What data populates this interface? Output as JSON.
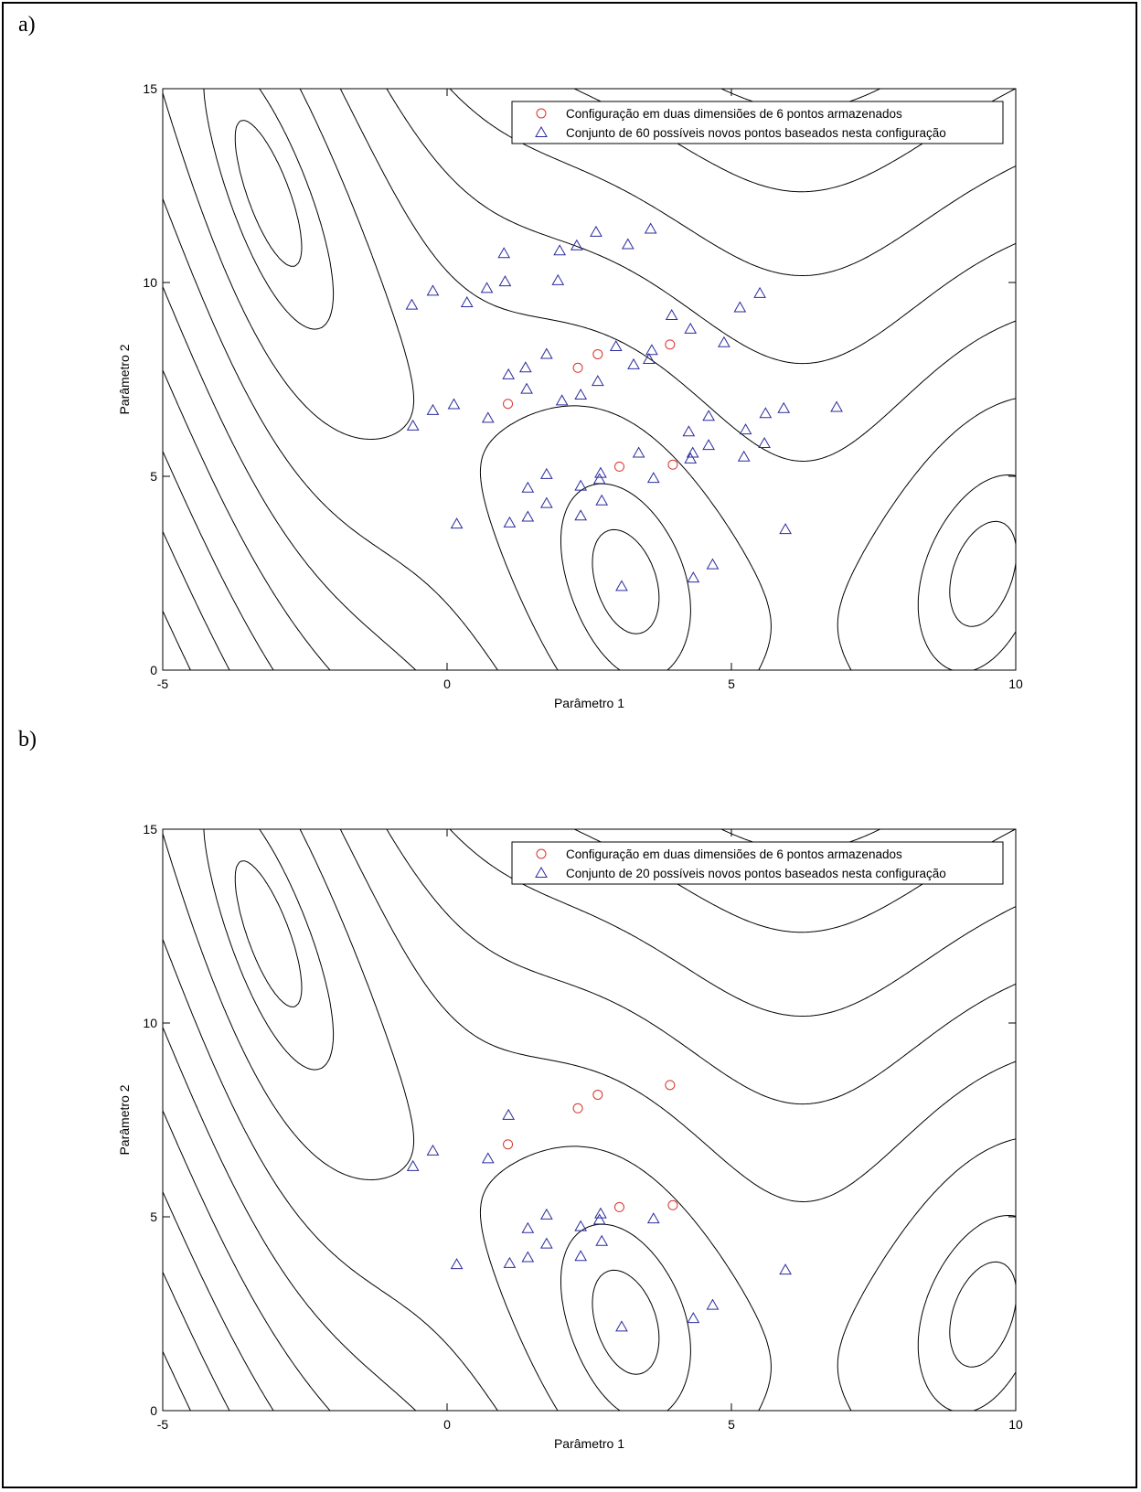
{
  "panels": [
    {
      "label": "a)"
    },
    {
      "label": "b)"
    }
  ],
  "colors": {
    "circle": "#d9342b",
    "triangle": "#2b2b9e",
    "contour": "#000000"
  },
  "chart_data": [
    {
      "type": "scatter",
      "title": "",
      "xlabel": "Parâmetro 1",
      "ylabel": "Parâmetro 2",
      "xlim": [
        -5,
        10
      ],
      "ylim": [
        0,
        15
      ],
      "xticks": [
        "-5",
        "0",
        "5",
        "10"
      ],
      "yticks": [
        "0",
        "5",
        "10",
        "15"
      ],
      "background": "contour lines",
      "legend_position": "top-right",
      "series": [
        {
          "name": "Configuração em duas dimensiões de 6 pontos armazenados",
          "marker": "circle",
          "points": [
            [
              1.07,
              6.87
            ],
            [
              2.3,
              7.8
            ],
            [
              2.65,
              8.15
            ],
            [
              3.92,
              8.4
            ],
            [
              3.03,
              5.25
            ],
            [
              3.97,
              5.3
            ]
          ]
        },
        {
          "name": "Conjunto de 60 possíveis novos pontos baseados nesta configuração",
          "marker": "triangle",
          "points": [
            [
              -0.6,
              6.3
            ],
            [
              -0.25,
              6.7
            ],
            [
              0.12,
              6.85
            ],
            [
              0.72,
              6.5
            ],
            [
              1.08,
              7.62
            ],
            [
              1.4,
              7.25
            ],
            [
              1.38,
              7.8
            ],
            [
              1.75,
              8.15
            ],
            [
              2.02,
              6.95
            ],
            [
              2.35,
              7.1
            ],
            [
              2.65,
              7.45
            ],
            [
              2.97,
              8.35
            ],
            [
              3.28,
              7.88
            ],
            [
              3.55,
              8.02
            ],
            [
              3.6,
              8.25
            ],
            [
              3.95,
              9.15
            ],
            [
              4.28,
              8.8
            ],
            [
              4.87,
              8.45
            ],
            [
              5.15,
              9.35
            ],
            [
              5.5,
              9.72
            ],
            [
              -0.62,
              9.42
            ],
            [
              -0.25,
              9.78
            ],
            [
              0.35,
              9.48
            ],
            [
              0.7,
              9.85
            ],
            [
              1.02,
              10.02
            ],
            [
              1.0,
              10.75
            ],
            [
              1.95,
              10.05
            ],
            [
              1.98,
              10.82
            ],
            [
              2.28,
              10.95
            ],
            [
              2.62,
              11.3
            ],
            [
              3.18,
              10.98
            ],
            [
              3.58,
              11.38
            ],
            [
              4.25,
              6.15
            ],
            [
              4.6,
              6.55
            ],
            [
              5.25,
              6.2
            ],
            [
              5.6,
              6.62
            ],
            [
              5.92,
              6.75
            ],
            [
              6.85,
              6.78
            ],
            [
              4.32,
              5.6
            ],
            [
              4.28,
              5.45
            ],
            [
              4.6,
              5.8
            ],
            [
              5.22,
              5.5
            ],
            [
              5.58,
              5.85
            ],
            [
              3.37,
              5.6
            ],
            [
              3.63,
              4.95
            ],
            [
              2.7,
              5.08
            ],
            [
              2.68,
              4.92
            ],
            [
              2.35,
              4.75
            ],
            [
              1.75,
              5.05
            ],
            [
              1.42,
              4.7
            ],
            [
              0.17,
              3.77
            ],
            [
              1.1,
              3.8
            ],
            [
              1.42,
              3.95
            ],
            [
              1.75,
              4.3
            ],
            [
              2.35,
              3.98
            ],
            [
              2.72,
              4.37
            ],
            [
              3.07,
              2.16
            ],
            [
              4.33,
              2.38
            ],
            [
              4.67,
              2.72
            ],
            [
              5.95,
              3.63
            ]
          ]
        }
      ]
    },
    {
      "type": "scatter",
      "title": "",
      "xlabel": "Parâmetro 1",
      "ylabel": "Parâmetro 2",
      "xlim": [
        -5,
        10
      ],
      "ylim": [
        0,
        15
      ],
      "xticks": [
        "-5",
        "0",
        "5",
        "10"
      ],
      "yticks": [
        "0",
        "5",
        "10",
        "15"
      ],
      "background": "contour lines",
      "legend_position": "top-right",
      "series": [
        {
          "name": "Configuração em duas dimensiões de 6 pontos armazenados",
          "marker": "circle",
          "points": [
            [
              1.07,
              6.87
            ],
            [
              2.3,
              7.8
            ],
            [
              2.65,
              8.15
            ],
            [
              3.92,
              8.4
            ],
            [
              3.03,
              5.25
            ],
            [
              3.97,
              5.3
            ]
          ]
        },
        {
          "name": "Conjunto de 20 possíveis novos pontos baseados nesta configuração",
          "marker": "triangle",
          "points": [
            [
              -0.6,
              6.3
            ],
            [
              -0.25,
              6.7
            ],
            [
              0.72,
              6.5
            ],
            [
              1.08,
              7.62
            ],
            [
              0.17,
              3.77
            ],
            [
              1.1,
              3.8
            ],
            [
              1.42,
              3.95
            ],
            [
              1.42,
              4.7
            ],
            [
              1.75,
              5.05
            ],
            [
              1.75,
              4.3
            ],
            [
              2.35,
              3.98
            ],
            [
              2.35,
              4.75
            ],
            [
              2.68,
              4.92
            ],
            [
              2.7,
              5.08
            ],
            [
              2.72,
              4.37
            ],
            [
              3.63,
              4.95
            ],
            [
              3.07,
              2.16
            ],
            [
              4.33,
              2.38
            ],
            [
              4.67,
              2.72
            ],
            [
              5.95,
              3.63
            ]
          ]
        }
      ]
    }
  ]
}
